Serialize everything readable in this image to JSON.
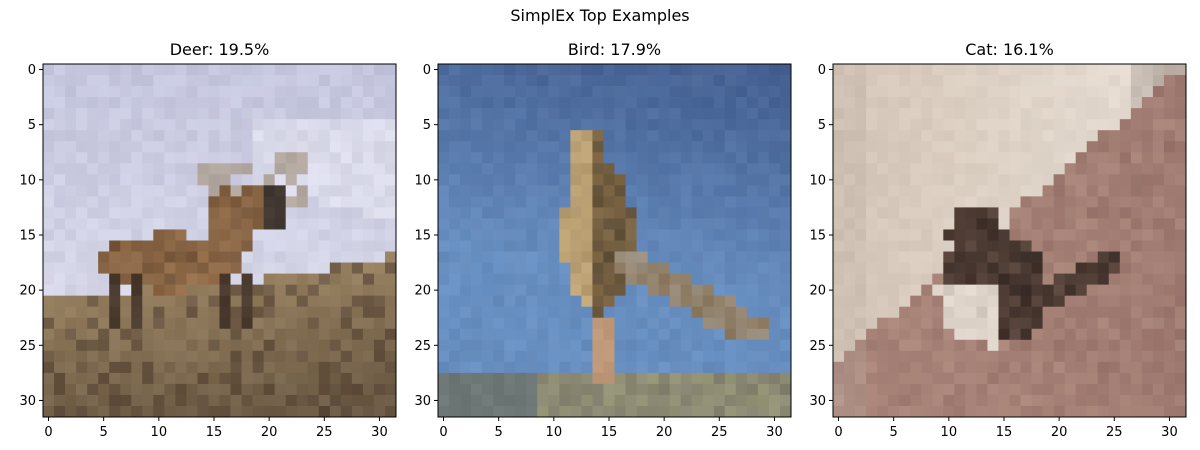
{
  "figure": {
    "suptitle": "SimplEx Top Examples"
  },
  "chart_data": [
    {
      "type": "image",
      "title": "Deer: 19.5%",
      "label": "Deer",
      "percent": 19.5,
      "xlim": [
        -0.5,
        31.5
      ],
      "ylim": [
        31.5,
        -0.5
      ],
      "xticks": [
        0,
        5,
        10,
        15,
        20,
        25,
        30
      ],
      "yticks": [
        0,
        5,
        10,
        15,
        20,
        25,
        30
      ],
      "grid": false,
      "image_size": [
        32,
        32
      ]
    },
    {
      "type": "image",
      "title": "Bird: 17.9%",
      "label": "Bird",
      "percent": 17.9,
      "xlim": [
        -0.5,
        31.5
      ],
      "ylim": [
        31.5,
        -0.5
      ],
      "xticks": [
        0,
        5,
        10,
        15,
        20,
        25,
        30
      ],
      "yticks": [
        0,
        5,
        10,
        15,
        20,
        25,
        30
      ],
      "grid": false,
      "image_size": [
        32,
        32
      ]
    },
    {
      "type": "image",
      "title": "Cat: 16.1%",
      "label": "Cat",
      "percent": 16.1,
      "xlim": [
        -0.5,
        31.5
      ],
      "ylim": [
        31.5,
        -0.5
      ],
      "xticks": [
        0,
        5,
        10,
        15,
        20,
        25,
        30
      ],
      "yticks": [
        0,
        5,
        10,
        15,
        20,
        25,
        30
      ],
      "grid": false,
      "image_size": [
        32,
        32
      ]
    }
  ]
}
